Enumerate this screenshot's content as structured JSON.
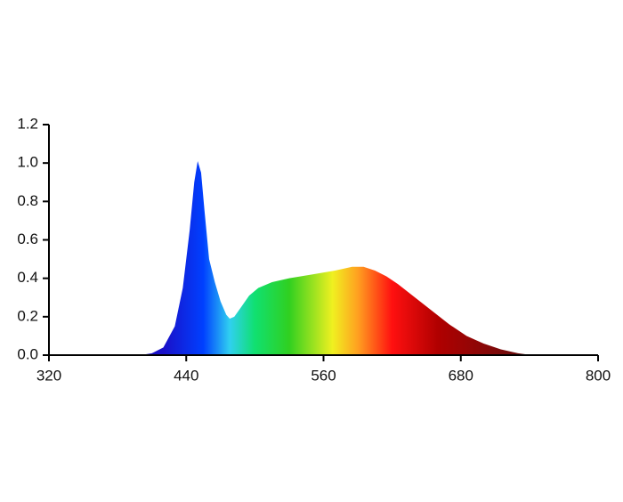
{
  "chart_data": {
    "type": "area",
    "x": [
      400,
      410,
      420,
      430,
      437,
      443,
      447,
      450,
      453,
      456,
      460,
      465,
      470,
      475,
      478,
      482,
      488,
      495,
      503,
      515,
      530,
      550,
      570,
      585,
      595,
      605,
      615,
      625,
      640,
      655,
      670,
      685,
      700,
      715,
      730,
      742
    ],
    "values": [
      0,
      0.01,
      0.04,
      0.15,
      0.35,
      0.65,
      0.9,
      1.01,
      0.95,
      0.75,
      0.5,
      0.38,
      0.28,
      0.21,
      0.19,
      0.2,
      0.25,
      0.31,
      0.35,
      0.38,
      0.4,
      0.42,
      0.44,
      0.46,
      0.46,
      0.44,
      0.41,
      0.37,
      0.3,
      0.23,
      0.16,
      0.1,
      0.06,
      0.03,
      0.01,
      0
    ],
    "fill_gradient": [
      {
        "x": 420,
        "color": "#1a10c8"
      },
      {
        "x": 455,
        "color": "#0040ff"
      },
      {
        "x": 478,
        "color": "#30d0f0"
      },
      {
        "x": 500,
        "color": "#10e070"
      },
      {
        "x": 530,
        "color": "#30d020"
      },
      {
        "x": 568,
        "color": "#f0f020"
      },
      {
        "x": 590,
        "color": "#ffa020"
      },
      {
        "x": 620,
        "color": "#ff1010"
      },
      {
        "x": 660,
        "color": "#b00000"
      },
      {
        "x": 742,
        "color": "#601010"
      }
    ],
    "xlim": [
      320,
      800
    ],
    "xticks": [
      320,
      440,
      560,
      680,
      800
    ],
    "ylim": [
      0,
      1.2
    ],
    "yticks": [
      {
        "value": 0,
        "label": "0.0"
      },
      0.2,
      0.4,
      0.6,
      0.8,
      {
        "value": 1,
        "label": "1.0"
      },
      1.2
    ]
  }
}
